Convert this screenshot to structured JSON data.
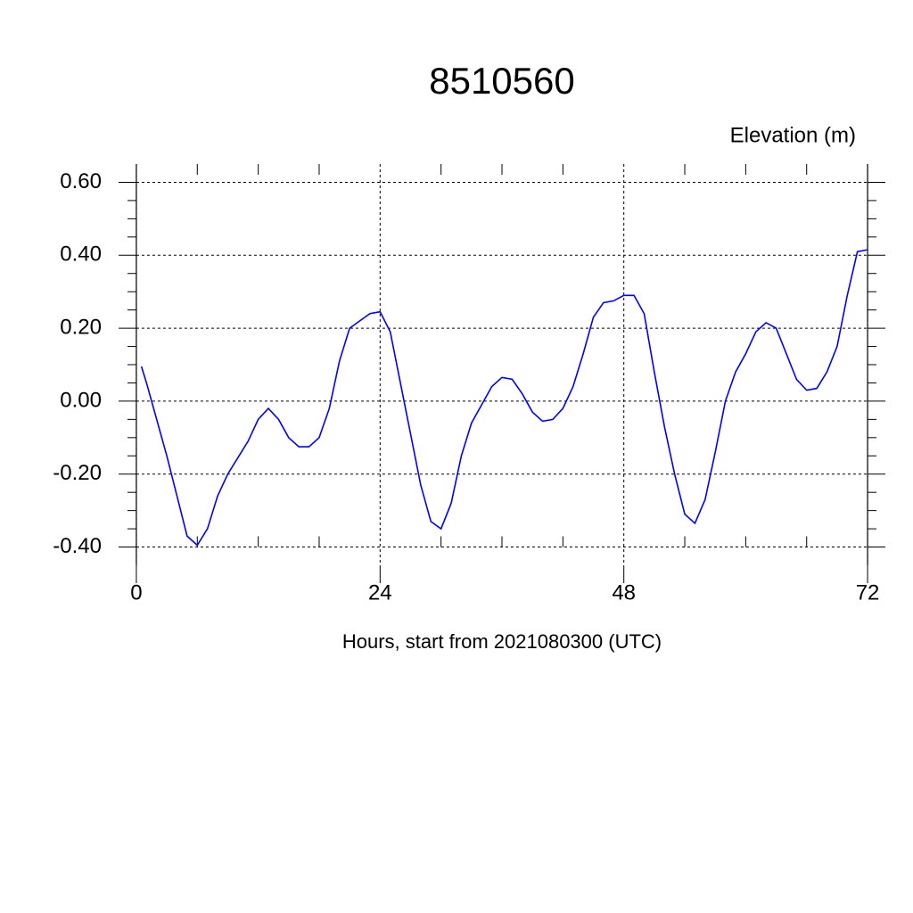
{
  "chart_data": {
    "type": "line",
    "title": "8510560",
    "y_axis_label": "Elevation (m)",
    "x_axis_label": "Hours, start from 2021080300 (UTC)",
    "x": [
      0.5,
      1,
      2,
      3,
      4,
      5,
      6,
      7,
      8,
      9,
      10,
      11,
      12,
      13,
      14,
      15,
      16,
      17,
      18,
      19,
      20,
      21,
      22,
      23,
      24,
      25,
      26,
      27,
      28,
      29,
      30,
      31,
      32,
      33,
      34,
      35,
      36,
      37,
      38,
      39,
      40,
      41,
      42,
      43,
      44,
      45,
      46,
      47,
      48,
      49,
      50,
      51,
      52,
      53,
      54,
      55,
      56,
      57,
      58,
      59,
      60,
      61,
      62,
      63,
      64,
      65,
      66,
      67,
      68,
      69,
      70,
      71,
      72
    ],
    "series": [
      {
        "color": "#0000ff",
        "values": [
          0.095,
          0.05,
          -0.05,
          -0.15,
          -0.26,
          -0.37,
          -0.395,
          -0.35,
          -0.26,
          -0.2,
          -0.155,
          -0.11,
          -0.05,
          -0.02,
          -0.05,
          -0.1,
          -0.125,
          -0.125,
          -0.1,
          -0.02,
          0.11,
          0.2,
          0.22,
          0.24,
          0.245,
          0.19,
          0.05,
          -0.09,
          -0.23,
          -0.33,
          -0.35,
          -0.28,
          -0.15,
          -0.06,
          -0.01,
          0.04,
          0.065,
          0.06,
          0.02,
          -0.03,
          -0.055,
          -0.05,
          -0.02,
          0.04,
          0.13,
          0.23,
          0.27,
          0.275,
          0.29,
          0.29,
          0.24,
          0.08,
          -0.07,
          -0.2,
          -0.31,
          -0.335,
          -0.27,
          -0.14,
          0.0,
          0.08,
          0.13,
          0.19,
          0.215,
          0.2,
          0.13,
          0.06,
          0.03,
          0.035,
          0.08,
          0.15,
          0.29,
          0.41,
          0.415
        ]
      }
    ],
    "xlim": [
      -1.75,
      73.75
    ],
    "ylim": [
      -0.45,
      0.65
    ],
    "xticks": [
      0,
      24,
      48,
      72
    ],
    "yticks": [
      {
        "value": -0.4,
        "label": "-0.40"
      },
      {
        "value": -0.2,
        "label": "-0.20"
      },
      {
        "value": 0,
        "label": "0.00"
      },
      {
        "value": 0.2,
        "label": "0.20"
      },
      {
        "value": 0.4,
        "label": "0.40"
      },
      {
        "value": 0.6,
        "label": "0.60"
      }
    ],
    "xminorticks": [
      6,
      12,
      18,
      30,
      36,
      42,
      54,
      60,
      66
    ],
    "yminorticks": [
      -0.35,
      -0.3,
      -0.25,
      -0.15,
      -0.1,
      -0.05,
      0.05,
      0.1,
      0.15,
      0.25,
      0.3,
      0.35,
      0.45,
      0.5,
      0.55
    ],
    "grid": true
  }
}
